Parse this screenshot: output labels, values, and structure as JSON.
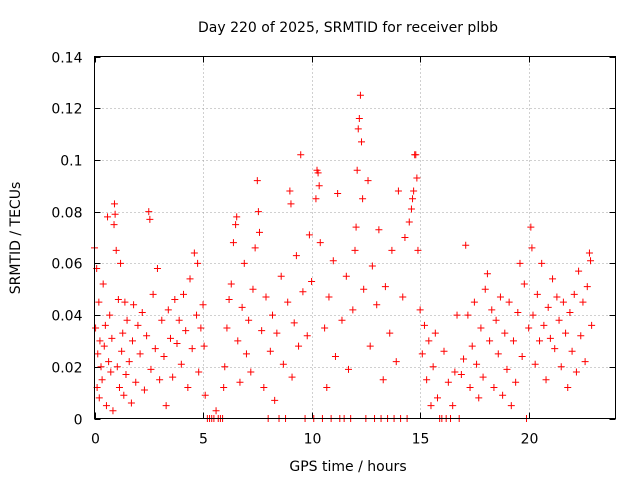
{
  "chart_data": {
    "type": "scatter",
    "title": "Day 220 of 2025, SRMTID for receiver plbb",
    "xlabel": "GPS time / hours",
    "ylabel": "SRMTID / TECUs",
    "xlim": [
      0,
      24
    ],
    "ylim": [
      0,
      0.14
    ],
    "x_ticks": [
      0,
      5,
      10,
      15,
      20
    ],
    "x_tick_labels": [
      "0",
      "5",
      "10",
      "15",
      "20"
    ],
    "y_ticks": [
      0,
      0.02,
      0.04,
      0.06,
      0.08,
      0.1,
      0.12,
      0.14
    ],
    "y_tick_labels": [
      "0",
      "0.02",
      "0.04",
      "0.06",
      "0.08",
      "0.1",
      "0.12",
      "0.14"
    ],
    "grid": true,
    "marker": "+",
    "series_color": "#ff0000",
    "series": [
      {
        "name": "SRMTID",
        "points": [
          [
            0.0,
            0.066
          ],
          [
            0.05,
            0.035
          ],
          [
            0.1,
            0.058
          ],
          [
            0.12,
            0.012
          ],
          [
            0.15,
            0.025
          ],
          [
            0.2,
            0.045
          ],
          [
            0.22,
            0.008
          ],
          [
            0.25,
            0.03
          ],
          [
            0.3,
            0.02
          ],
          [
            0.35,
            0.015
          ],
          [
            0.4,
            0.052
          ],
          [
            0.45,
            0.028
          ],
          [
            0.5,
            0.036
          ],
          [
            0.55,
            0.005
          ],
          [
            0.6,
            0.078
          ],
          [
            0.65,
            0.022
          ],
          [
            0.7,
            0.04
          ],
          [
            0.75,
            0.018
          ],
          [
            0.8,
            0.031
          ],
          [
            0.85,
            0.003
          ],
          [
            0.9,
            0.075
          ],
          [
            0.92,
            0.083
          ],
          [
            0.95,
            0.079
          ],
          [
            1.0,
            0.065
          ],
          [
            1.05,
            0.02
          ],
          [
            1.1,
            0.046
          ],
          [
            1.15,
            0.012
          ],
          [
            1.2,
            0.06
          ],
          [
            1.25,
            0.026
          ],
          [
            1.3,
            0.033
          ],
          [
            1.35,
            0.009
          ],
          [
            1.4,
            0.045
          ],
          [
            1.45,
            0.017
          ],
          [
            1.5,
            0.038
          ],
          [
            1.6,
            0.022
          ],
          [
            1.7,
            0.006
          ],
          [
            1.75,
            0.03
          ],
          [
            1.8,
            0.044
          ],
          [
            1.9,
            0.014
          ],
          [
            2.0,
            0.036
          ],
          [
            2.1,
            0.025
          ],
          [
            2.2,
            0.041
          ],
          [
            2.3,
            0.011
          ],
          [
            2.4,
            0.032
          ],
          [
            2.5,
            0.08
          ],
          [
            2.55,
            0.077
          ],
          [
            2.6,
            0.019
          ],
          [
            2.7,
            0.048
          ],
          [
            2.8,
            0.027
          ],
          [
            2.9,
            0.058
          ],
          [
            3.0,
            0.015
          ],
          [
            3.1,
            0.038
          ],
          [
            3.2,
            0.024
          ],
          [
            3.3,
            0.005
          ],
          [
            3.4,
            0.042
          ],
          [
            3.5,
            0.031
          ],
          [
            3.6,
            0.016
          ],
          [
            3.7,
            0.046
          ],
          [
            3.8,
            0.029
          ],
          [
            3.9,
            0.038
          ],
          [
            4.0,
            0.021
          ],
          [
            4.1,
            0.048
          ],
          [
            4.2,
            0.034
          ],
          [
            4.3,
            0.012
          ],
          [
            4.4,
            0.054
          ],
          [
            4.5,
            0.027
          ],
          [
            4.6,
            0.064
          ],
          [
            4.7,
            0.04
          ],
          [
            4.75,
            0.06
          ],
          [
            4.8,
            0.018
          ],
          [
            4.9,
            0.035
          ],
          [
            5.0,
            0.044
          ],
          [
            5.05,
            0.028
          ],
          [
            5.1,
            0.009
          ],
          [
            5.2,
            0.0
          ],
          [
            5.3,
            0.0
          ],
          [
            5.4,
            0.0
          ],
          [
            5.5,
            0.0
          ],
          [
            5.6,
            0.003
          ],
          [
            5.7,
            0.0
          ],
          [
            5.8,
            0.0
          ],
          [
            5.9,
            0.0
          ],
          [
            5.95,
            0.012
          ],
          [
            6.0,
            0.02
          ],
          [
            6.1,
            0.035
          ],
          [
            6.2,
            0.046
          ],
          [
            6.3,
            0.052
          ],
          [
            6.4,
            0.068
          ],
          [
            6.5,
            0.075
          ],
          [
            6.55,
            0.078
          ],
          [
            6.6,
            0.03
          ],
          [
            6.7,
            0.014
          ],
          [
            6.8,
            0.043
          ],
          [
            6.9,
            0.06
          ],
          [
            7.0,
            0.025
          ],
          [
            7.1,
            0.038
          ],
          [
            7.2,
            0.018
          ],
          [
            7.3,
            0.05
          ],
          [
            7.4,
            0.066
          ],
          [
            7.5,
            0.092
          ],
          [
            7.55,
            0.08
          ],
          [
            7.6,
            0.072
          ],
          [
            7.7,
            0.034
          ],
          [
            7.8,
            0.012
          ],
          [
            7.9,
            0.047
          ],
          [
            8.0,
            0.0
          ],
          [
            8.1,
            0.026
          ],
          [
            8.2,
            0.04
          ],
          [
            8.3,
            0.007
          ],
          [
            8.4,
            0.033
          ],
          [
            8.5,
            0.0
          ],
          [
            8.6,
            0.055
          ],
          [
            8.7,
            0.021
          ],
          [
            8.8,
            0.0
          ],
          [
            8.9,
            0.045
          ],
          [
            9.0,
            0.088
          ],
          [
            9.05,
            0.083
          ],
          [
            9.1,
            0.016
          ],
          [
            9.2,
            0.037
          ],
          [
            9.3,
            0.063
          ],
          [
            9.4,
            0.028
          ],
          [
            9.5,
            0.102
          ],
          [
            9.6,
            0.049
          ],
          [
            9.7,
            0.0
          ],
          [
            9.8,
            0.032
          ],
          [
            9.9,
            0.071
          ],
          [
            10.0,
            0.053
          ],
          [
            10.1,
            0.0
          ],
          [
            10.2,
            0.085
          ],
          [
            10.25,
            0.096
          ],
          [
            10.3,
            0.095
          ],
          [
            10.35,
            0.09
          ],
          [
            10.4,
            0.068
          ],
          [
            10.5,
            0.0
          ],
          [
            10.6,
            0.035
          ],
          [
            10.7,
            0.012
          ],
          [
            10.8,
            0.047
          ],
          [
            10.9,
            0.0
          ],
          [
            11.0,
            0.061
          ],
          [
            11.1,
            0.024
          ],
          [
            11.2,
            0.087
          ],
          [
            11.3,
            0.0
          ],
          [
            11.4,
            0.038
          ],
          [
            11.5,
            0.0
          ],
          [
            11.6,
            0.055
          ],
          [
            11.7,
            0.019
          ],
          [
            11.8,
            0.0
          ],
          [
            11.9,
            0.042
          ],
          [
            12.0,
            0.065
          ],
          [
            12.05,
            0.074
          ],
          [
            12.1,
            0.096
          ],
          [
            12.15,
            0.112
          ],
          [
            12.2,
            0.116
          ],
          [
            12.25,
            0.125
          ],
          [
            12.3,
            0.107
          ],
          [
            12.35,
            0.085
          ],
          [
            12.4,
            0.05
          ],
          [
            12.5,
            0.0
          ],
          [
            12.6,
            0.092
          ],
          [
            12.7,
            0.028
          ],
          [
            12.8,
            0.059
          ],
          [
            12.9,
            0.0
          ],
          [
            13.0,
            0.044
          ],
          [
            13.1,
            0.073
          ],
          [
            13.2,
            0.0
          ],
          [
            13.3,
            0.015
          ],
          [
            13.4,
            0.051
          ],
          [
            13.5,
            0.0
          ],
          [
            13.6,
            0.033
          ],
          [
            13.7,
            0.065
          ],
          [
            13.8,
            0.0
          ],
          [
            13.9,
            0.022
          ],
          [
            14.0,
            0.088
          ],
          [
            14.1,
            0.0
          ],
          [
            14.2,
            0.047
          ],
          [
            14.3,
            0.07
          ],
          [
            14.4,
            0.0
          ],
          [
            14.5,
            0.076
          ],
          [
            14.6,
            0.081
          ],
          [
            14.65,
            0.085
          ],
          [
            14.7,
            0.088
          ],
          [
            14.75,
            0.102
          ],
          [
            14.8,
            0.102
          ],
          [
            14.85,
            0.093
          ],
          [
            14.9,
            0.065
          ],
          [
            15.0,
            0.042
          ],
          [
            15.1,
            0.025
          ],
          [
            15.2,
            0.036
          ],
          [
            15.3,
            0.015
          ],
          [
            15.4,
            0.03
          ],
          [
            15.5,
            0.005
          ],
          [
            15.6,
            0.02
          ],
          [
            15.7,
            0.033
          ],
          [
            15.8,
            0.008
          ],
          [
            15.9,
            0.0
          ],
          [
            16.0,
            0.0
          ],
          [
            16.1,
            0.026
          ],
          [
            16.2,
            0.0
          ],
          [
            16.3,
            0.014
          ],
          [
            16.4,
            0.0
          ],
          [
            16.5,
            0.005
          ],
          [
            16.6,
            0.018
          ],
          [
            16.7,
            0.04
          ],
          [
            16.8,
            0.0
          ],
          [
            16.9,
            0.017
          ],
          [
            17.0,
            0.023
          ],
          [
            17.1,
            0.067
          ],
          [
            17.2,
            0.04
          ],
          [
            17.3,
            0.012
          ],
          [
            17.4,
            0.028
          ],
          [
            17.5,
            0.045
          ],
          [
            17.6,
            0.021
          ],
          [
            17.7,
            0.008
          ],
          [
            17.8,
            0.035
          ],
          [
            17.9,
            0.016
          ],
          [
            18.0,
            0.05
          ],
          [
            18.1,
            0.056
          ],
          [
            18.2,
            0.03
          ],
          [
            18.3,
            0.042
          ],
          [
            18.4,
            0.012
          ],
          [
            18.5,
            0.038
          ],
          [
            18.6,
            0.025
          ],
          [
            18.7,
            0.047
          ],
          [
            18.8,
            0.009
          ],
          [
            18.9,
            0.033
          ],
          [
            19.0,
            0.019
          ],
          [
            19.1,
            0.045
          ],
          [
            19.2,
            0.005
          ],
          [
            19.3,
            0.03
          ],
          [
            19.4,
            0.014
          ],
          [
            19.5,
            0.041
          ],
          [
            19.6,
            0.06
          ],
          [
            19.7,
            0.024
          ],
          [
            19.8,
            0.052
          ],
          [
            19.9,
            0.0
          ],
          [
            20.0,
            0.035
          ],
          [
            20.1,
            0.074
          ],
          [
            20.15,
            0.066
          ],
          [
            20.2,
            0.04
          ],
          [
            20.3,
            0.021
          ],
          [
            20.4,
            0.048
          ],
          [
            20.5,
            0.03
          ],
          [
            20.6,
            0.06
          ],
          [
            20.7,
            0.036
          ],
          [
            20.8,
            0.015
          ],
          [
            20.9,
            0.043
          ],
          [
            21.0,
            0.031
          ],
          [
            21.1,
            0.054
          ],
          [
            21.2,
            0.027
          ],
          [
            21.3,
            0.047
          ],
          [
            21.4,
            0.038
          ],
          [
            21.5,
            0.02
          ],
          [
            21.6,
            0.045
          ],
          [
            21.7,
            0.033
          ],
          [
            21.8,
            0.012
          ],
          [
            21.9,
            0.041
          ],
          [
            22.0,
            0.026
          ],
          [
            22.1,
            0.048
          ],
          [
            22.2,
            0.018
          ],
          [
            22.3,
            0.057
          ],
          [
            22.4,
            0.032
          ],
          [
            22.5,
            0.045
          ],
          [
            22.6,
            0.022
          ],
          [
            22.7,
            0.051
          ],
          [
            22.8,
            0.064
          ],
          [
            22.85,
            0.061
          ],
          [
            22.9,
            0.036
          ]
        ]
      }
    ]
  }
}
